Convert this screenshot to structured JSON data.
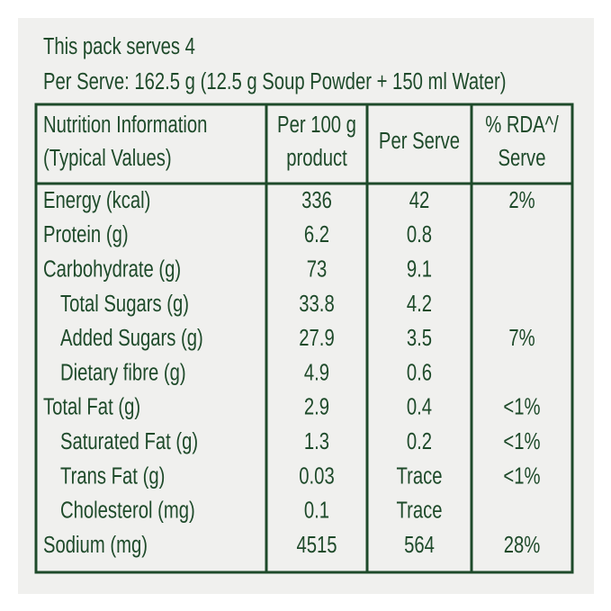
{
  "header": {
    "line1": "This pack serves 4",
    "line2": "Per Serve: 162.5 g (12.5 g Soup Powder + 150 ml Water)"
  },
  "table": {
    "columns": [
      [
        "Nutrition Information",
        "(Typical Values)"
      ],
      [
        "Per 100 g",
        "product"
      ],
      [
        "Per Serve"
      ],
      [
        "% RDA^/",
        "Serve"
      ]
    ],
    "rows": [
      {
        "label": "Energy (kcal)",
        "per_100g": "336",
        "per_serve": "42",
        "rda": "2%",
        "level": 0
      },
      {
        "label": "Protein (g)",
        "per_100g": "6.2",
        "per_serve": "0.8",
        "rda": null,
        "level": 0
      },
      {
        "label": "Carbohydrate (g)",
        "per_100g": "73",
        "per_serve": "9.1",
        "rda": null,
        "level": 0
      },
      {
        "label": "Total Sugars (g)",
        "per_100g": "33.8",
        "per_serve": "4.2",
        "rda": null,
        "level": 1
      },
      {
        "label": "Added Sugars (g)",
        "per_100g": "27.9",
        "per_serve": "3.5",
        "rda": "7%",
        "level": 1
      },
      {
        "label": "Dietary fibre (g)",
        "per_100g": "4.9",
        "per_serve": "0.6",
        "rda": null,
        "level": 1
      },
      {
        "label": "Total Fat (g)",
        "per_100g": "2.9",
        "per_serve": "0.4",
        "rda": "<1%",
        "level": 0
      },
      {
        "label": "Saturated Fat (g)",
        "per_100g": "1.3",
        "per_serve": "0.2",
        "rda": "<1%",
        "level": 1
      },
      {
        "label": "Trans Fat (g)",
        "per_100g": "0.03",
        "per_serve": "Trace",
        "rda": "<1%",
        "level": 1
      },
      {
        "label": "Cholesterol (mg)",
        "per_100g": "0.1",
        "per_serve": "Trace",
        "rda": null,
        "level": 1
      },
      {
        "label": "Sodium (mg)",
        "per_100g": "4515",
        "per_serve": "564",
        "rda": "28%",
        "level": 0
      }
    ]
  }
}
